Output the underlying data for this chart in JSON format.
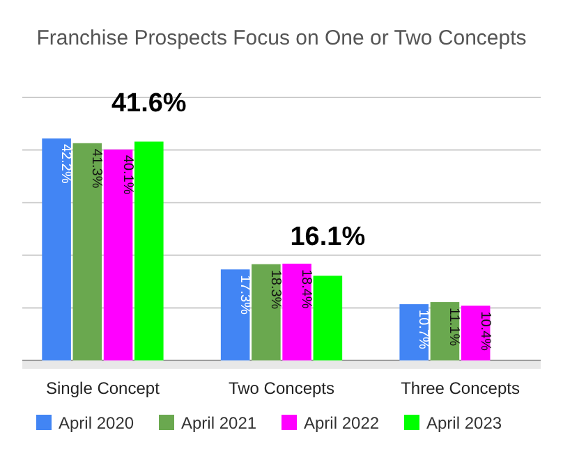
{
  "chart_data": {
    "type": "bar",
    "title": "Franchise Prospects Focus on One or Two Concepts",
    "categories": [
      "Single Concept",
      "Two Concepts",
      "Three Concepts"
    ],
    "series": [
      {
        "name": "April 2020",
        "color": "#4285f4",
        "values": [
          42.2,
          17.3,
          10.7
        ],
        "value_labels": [
          "42.2%",
          "17.3%",
          "10.7%"
        ]
      },
      {
        "name": "April 2021",
        "color": "#6aa84f",
        "values": [
          41.3,
          18.3,
          11.1
        ],
        "value_labels": [
          "41.3%",
          "18.3%",
          "11.1%"
        ]
      },
      {
        "name": "April 2022",
        "color": "#ff00ff",
        "values": [
          40.1,
          18.4,
          10.4
        ],
        "value_labels": [
          "40.1%",
          "18.4%",
          "10.4%"
        ]
      },
      {
        "name": "April 2023",
        "color": "#00ff00",
        "values": [
          41.6,
          16.1,
          null
        ],
        "value_labels": [
          "41.6%",
          "16.1%",
          null
        ]
      }
    ],
    "ylim": [
      0,
      50
    ],
    "yticks": [
      {
        "value": 0,
        "label": null
      },
      {
        "value": 10,
        "label": null
      },
      {
        "value": 20,
        "label": null
      },
      {
        "value": 30,
        "label": null
      },
      {
        "value": 40,
        "label": null
      },
      {
        "value": 50,
        "label": null
      }
    ],
    "tick_labels": "x",
    "grid": "y",
    "legend": "bottom"
  }
}
